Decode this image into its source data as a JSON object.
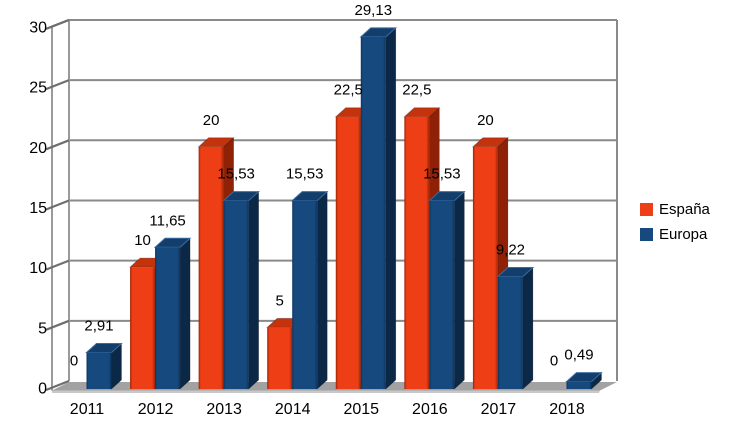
{
  "chart_data": {
    "type": "bar",
    "style": "3d-column",
    "title": "",
    "xlabel": "",
    "ylabel": "",
    "categories": [
      "2011",
      "2012",
      "2013",
      "2014",
      "2015",
      "2016",
      "2017",
      "2018"
    ],
    "series": [
      {
        "name": "España",
        "values": [
          0,
          10,
          20,
          5,
          22.5,
          22.5,
          20,
          0
        ],
        "data_labels": [
          "0",
          "10",
          "20",
          "5",
          "22,5",
          "22,5",
          "20",
          "0"
        ]
      },
      {
        "name": "Europa",
        "values": [
          2.91,
          11.65,
          15.53,
          15.53,
          29.13,
          15.53,
          9.22,
          0.49
        ],
        "data_labels": [
          "2,91",
          "11,65",
          "15,53",
          "15,53",
          "29,13",
          "15,53",
          "9,22",
          "0,49"
        ]
      }
    ],
    "ylim": [
      0,
      30
    ],
    "ytick_step": 5,
    "yticks": [
      "0",
      "5",
      "10",
      "15",
      "20",
      "25",
      "30"
    ],
    "grid": true,
    "legend_position": "right"
  },
  "legend": {
    "items": [
      {
        "label": "España",
        "color": "#EE3E15"
      },
      {
        "label": "Europa",
        "color": "#164A7F"
      }
    ]
  },
  "colors": {
    "espana_face": "#EE3E15",
    "espana_face_edge": "#9A2405",
    "espana_side": "#8E2106",
    "espana_top": "#C5330D",
    "europa_face": "#164A7F",
    "europa_face_edge": "#0E3560",
    "europa_side": "#0C2847",
    "europa_top": "#133E6B",
    "europa_top_stroke": "#3A6CA0",
    "gridline": "#8A8A8A",
    "wall_border": "#9A9A9A",
    "tick_hatch": "#6E6E6E",
    "floor": "#A2A2A2",
    "floor_front": "#C8C8C8",
    "background": "#FFFFFF",
    "text": "#000000"
  }
}
